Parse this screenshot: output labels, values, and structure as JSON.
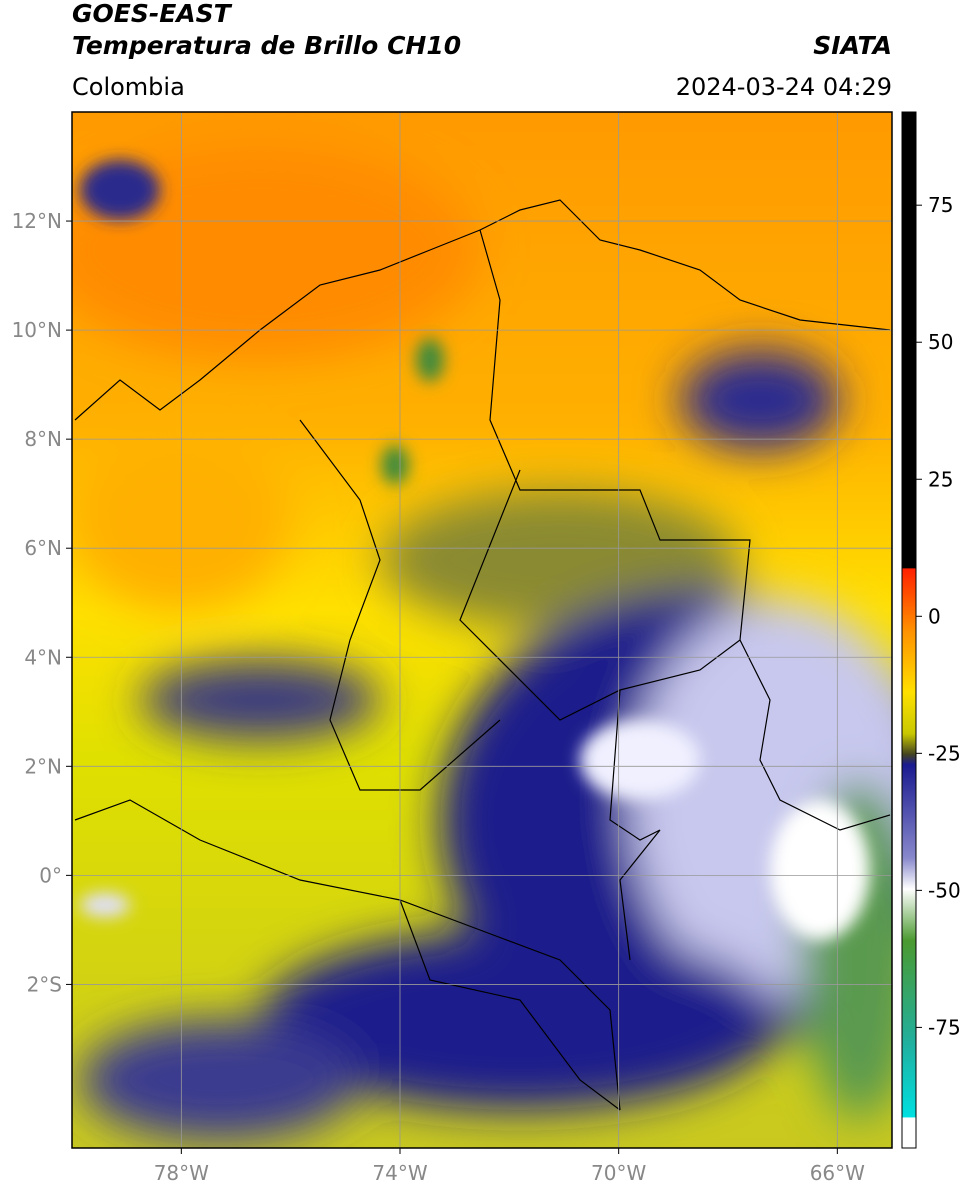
{
  "header": {
    "title": "GOES-EAST",
    "subtitle": "Temperatura de Brillo CH10",
    "source": "SIATA",
    "region": "Colombia",
    "timestamp": "2024-03-24 04:29"
  },
  "map": {
    "lon_range": [
      -80,
      -65
    ],
    "lat_range": [
      -5,
      14
    ],
    "grid": true,
    "lon_ticks": [
      {
        "value": -78,
        "label": "78°W"
      },
      {
        "value": -74,
        "label": "74°W"
      },
      {
        "value": -70,
        "label": "70°W"
      },
      {
        "value": -66,
        "label": "66°W"
      }
    ],
    "lat_ticks": [
      {
        "value": 12,
        "label": "12°N"
      },
      {
        "value": 10,
        "label": "10°N"
      },
      {
        "value": 8,
        "label": "8°N"
      },
      {
        "value": 6,
        "label": "6°N"
      },
      {
        "value": 4,
        "label": "4°N"
      },
      {
        "value": 2,
        "label": "2°N"
      },
      {
        "value": 0,
        "label": "0°"
      },
      {
        "value": -2,
        "label": "2°S"
      }
    ]
  },
  "colorbar": {
    "range": [
      -97,
      92
    ],
    "ticks": [
      75,
      50,
      25,
      0,
      -25,
      -50,
      -75
    ]
  }
}
